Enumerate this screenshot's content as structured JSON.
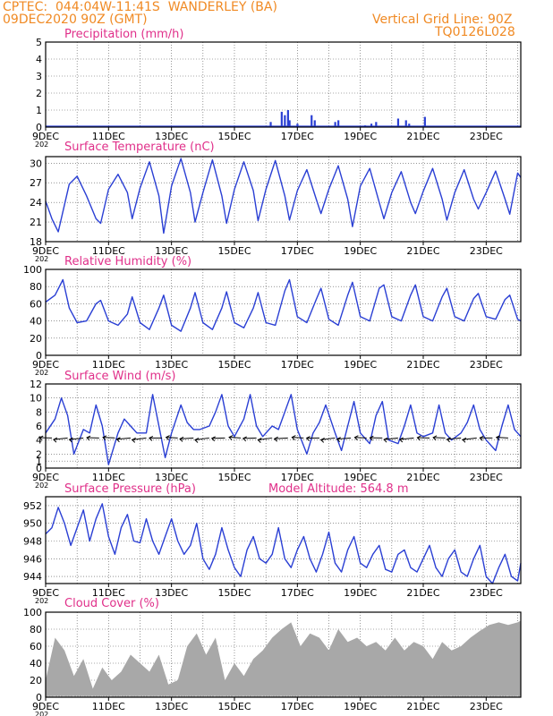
{
  "header": {
    "left_line1": "CPTEC:  044:04W-11:41S  WANDERLEY (BA)",
    "left_line2": "09DEC2020 90Z (GMT)",
    "right_line1": "Vertical Grid Line: 90Z",
    "right_line2": "TQ0126L028"
  },
  "colors": {
    "header": "#f08a24",
    "panel_title": "#e0308a",
    "series": "#2a3fd4",
    "bars": "#2a3fd4",
    "cloud_fill": "#a8a8a8",
    "grid": "#555555",
    "wind_arrows": "#000000"
  },
  "x_axis": {
    "tick_labels": [
      "9DEC",
      "11DEC",
      "13DEC",
      "15DEC",
      "17DEC",
      "19DEC",
      "21DEC",
      "23DEC"
    ],
    "year_fragment": "202"
  },
  "chart_data": [
    {
      "type": "bar",
      "title": "Precipitation (mm/h)",
      "x_unit": "day of December 2020",
      "xlim": [
        9,
        24.1
      ],
      "ylim": [
        0,
        5
      ],
      "yticks": [
        0,
        1,
        2,
        3,
        4,
        5
      ],
      "grid": true,
      "x": [
        16.15,
        16.5,
        16.6,
        16.7,
        16.75,
        17.0,
        17.45,
        17.55,
        18.2,
        18.3,
        19.15,
        19.35,
        19.5,
        20.2,
        20.45,
        20.55,
        21.05
      ],
      "values": [
        0.3,
        0.9,
        0.7,
        1.0,
        0.4,
        0.2,
        0.7,
        0.4,
        0.3,
        0.4,
        0.1,
        0.2,
        0.3,
        0.5,
        0.4,
        0.2,
        0.6
      ]
    },
    {
      "type": "line",
      "title": "Surface Temperature (nC)",
      "x_unit": "day of December 2020",
      "xlim": [
        9,
        24.1
      ],
      "ylim": [
        18,
        31
      ],
      "yticks": [
        18,
        21,
        24,
        27,
        30
      ],
      "grid": true,
      "series": [
        {
          "x": [
            9.0,
            9.2,
            9.4,
            9.75,
            10.0,
            10.3,
            10.6,
            10.75,
            11.0,
            11.3,
            11.6,
            11.75,
            12.0,
            12.3,
            12.6,
            12.75,
            13.0,
            13.3,
            13.6,
            13.75,
            14.0,
            14.3,
            14.6,
            14.75,
            15.0,
            15.3,
            15.6,
            15.75,
            16.0,
            16.3,
            16.6,
            16.75,
            17.0,
            17.3,
            17.6,
            17.75,
            18.0,
            18.3,
            18.6,
            18.75,
            19.0,
            19.3,
            19.6,
            19.75,
            20.0,
            20.3,
            20.6,
            20.75,
            21.0,
            21.3,
            21.6,
            21.75,
            22.0,
            22.3,
            22.6,
            22.75,
            23.0,
            23.3,
            23.6,
            23.75,
            24.0,
            24.1
          ],
          "values": [
            24.2,
            21.5,
            19.5,
            26.8,
            28.0,
            25.0,
            21.5,
            20.8,
            26.0,
            28.3,
            25.5,
            21.5,
            26.2,
            30.2,
            25.0,
            19.3,
            26.5,
            30.7,
            25.5,
            21.0,
            25.5,
            30.5,
            25.0,
            20.8,
            26.0,
            30.2,
            25.8,
            21.2,
            26.0,
            30.4,
            25.0,
            21.3,
            25.8,
            29.0,
            24.5,
            22.3,
            26.0,
            29.6,
            24.5,
            20.3,
            26.5,
            29.2,
            24.0,
            21.5,
            25.5,
            28.7,
            24.0,
            22.3,
            25.7,
            29.2,
            24.5,
            21.3,
            25.5,
            29.0,
            24.5,
            23.0,
            25.5,
            28.8,
            24.5,
            22.2,
            28.5,
            27.8
          ]
        }
      ]
    },
    {
      "type": "line",
      "title": "Relative Humidity (%)",
      "x_unit": "day of December 2020",
      "xlim": [
        9,
        24.1
      ],
      "ylim": [
        0,
        100
      ],
      "yticks": [
        0,
        20,
        40,
        60,
        80,
        100
      ],
      "grid": true,
      "series": [
        {
          "x": [
            9.0,
            9.3,
            9.55,
            9.75,
            10.0,
            10.3,
            10.6,
            10.75,
            11.0,
            11.3,
            11.6,
            11.75,
            12.0,
            12.3,
            12.6,
            12.75,
            13.0,
            13.3,
            13.6,
            13.75,
            14.0,
            14.3,
            14.6,
            14.75,
            15.0,
            15.3,
            15.6,
            15.75,
            16.0,
            16.3,
            16.6,
            16.75,
            17.0,
            17.3,
            17.6,
            17.75,
            18.0,
            18.3,
            18.6,
            18.75,
            19.0,
            19.3,
            19.6,
            19.75,
            20.0,
            20.3,
            20.6,
            20.75,
            21.0,
            21.3,
            21.6,
            21.75,
            22.0,
            22.3,
            22.6,
            22.75,
            23.0,
            23.3,
            23.6,
            23.75,
            24.0,
            24.1
          ],
          "values": [
            62,
            70,
            88,
            55,
            38,
            40,
            60,
            64,
            40,
            35,
            48,
            68,
            38,
            30,
            55,
            70,
            35,
            28,
            55,
            73,
            38,
            30,
            55,
            74,
            38,
            32,
            55,
            73,
            38,
            35,
            75,
            88,
            45,
            38,
            65,
            78,
            42,
            35,
            70,
            85,
            45,
            40,
            78,
            82,
            45,
            40,
            70,
            82,
            45,
            40,
            68,
            78,
            45,
            40,
            66,
            72,
            45,
            42,
            65,
            70,
            42,
            40
          ]
        }
      ]
    },
    {
      "type": "line",
      "title": "Surface Wind (m/s)",
      "x_unit": "day of December 2020",
      "xlim": [
        9,
        24.1
      ],
      "ylim": [
        0,
        12
      ],
      "yticks": [
        0,
        1,
        2,
        4,
        6,
        8,
        10,
        12
      ],
      "grid": true,
      "series": [
        {
          "x": [
            9.0,
            9.3,
            9.5,
            9.7,
            9.9,
            10.2,
            10.4,
            10.6,
            10.8,
            11.0,
            11.3,
            11.5,
            11.7,
            11.9,
            12.2,
            12.4,
            12.6,
            12.8,
            13.0,
            13.3,
            13.5,
            13.7,
            13.9,
            14.2,
            14.4,
            14.6,
            14.8,
            15.0,
            15.3,
            15.5,
            15.7,
            15.9,
            16.2,
            16.4,
            16.6,
            16.8,
            17.0,
            17.3,
            17.5,
            17.7,
            17.9,
            18.2,
            18.4,
            18.6,
            18.8,
            19.0,
            19.3,
            19.5,
            19.7,
            19.9,
            20.2,
            20.4,
            20.6,
            20.8,
            21.0,
            21.3,
            21.5,
            21.7,
            21.9,
            22.2,
            22.4,
            22.6,
            22.8,
            23.0,
            23.3,
            23.5,
            23.7,
            23.9,
            24.1
          ],
          "values": [
            5.0,
            7.0,
            10.0,
            7.5,
            2.0,
            5.5,
            5.0,
            9.0,
            6.0,
            0.5,
            5.0,
            7.0,
            6.0,
            5.0,
            5.0,
            10.5,
            6.0,
            1.5,
            5.0,
            9.0,
            6.5,
            5.5,
            5.5,
            6.0,
            8.0,
            10.5,
            6.0,
            4.5,
            7.0,
            10.5,
            6.0,
            4.5,
            6.0,
            5.5,
            8.0,
            10.5,
            5.5,
            2.0,
            5.0,
            6.5,
            9.0,
            5.0,
            2.5,
            6.0,
            9.5,
            5.0,
            3.5,
            7.5,
            9.5,
            4.0,
            3.5,
            6.0,
            9.0,
            5.0,
            4.5,
            5.0,
            9.0,
            5.0,
            4.0,
            5.0,
            6.5,
            9.0,
            5.5,
            4.0,
            2.5,
            6.0,
            9.0,
            5.5,
            4.5
          ]
        }
      ],
      "wind_arrows_direction": "westerly-pointing (from east/northeast)"
    },
    {
      "type": "line",
      "title": "Surface Pressure (hPa)",
      "annotation": "Model Altitude:  564.8  m",
      "x_unit": "day of December 2020",
      "xlim": [
        9,
        24.1
      ],
      "ylim": [
        943.2,
        953
      ],
      "yticks": [
        944,
        946,
        948,
        950,
        952
      ],
      "grid": true,
      "series": [
        {
          "x": [
            9.0,
            9.2,
            9.4,
            9.6,
            9.8,
            10.0,
            10.2,
            10.4,
            10.6,
            10.8,
            11.0,
            11.2,
            11.4,
            11.6,
            11.8,
            12.0,
            12.2,
            12.4,
            12.6,
            12.8,
            13.0,
            13.2,
            13.4,
            13.6,
            13.8,
            14.0,
            14.2,
            14.4,
            14.6,
            14.8,
            15.0,
            15.2,
            15.4,
            15.6,
            15.8,
            16.0,
            16.2,
            16.4,
            16.6,
            16.8,
            17.0,
            17.2,
            17.4,
            17.6,
            17.8,
            18.0,
            18.2,
            18.4,
            18.6,
            18.8,
            19.0,
            19.2,
            19.4,
            19.6,
            19.8,
            20.0,
            20.2,
            20.4,
            20.6,
            20.8,
            21.0,
            21.2,
            21.4,
            21.6,
            21.8,
            22.0,
            22.2,
            22.4,
            22.6,
            22.8,
            23.0,
            23.2,
            23.4,
            23.6,
            23.8,
            24.0,
            24.1
          ],
          "values": [
            948.8,
            949.5,
            951.8,
            950.0,
            947.5,
            949.5,
            951.5,
            948.0,
            950.5,
            952.2,
            948.5,
            946.5,
            949.5,
            951.0,
            948.0,
            947.8,
            950.5,
            948.0,
            946.5,
            948.5,
            950.5,
            948.0,
            946.5,
            947.5,
            950.0,
            946.0,
            944.8,
            946.5,
            949.5,
            947.0,
            945.0,
            944.0,
            947.0,
            948.5,
            946.0,
            945.5,
            946.5,
            949.5,
            946.0,
            945.0,
            947.0,
            948.5,
            946.0,
            944.5,
            946.5,
            949.0,
            945.5,
            944.5,
            947.0,
            948.5,
            945.5,
            945.0,
            946.5,
            947.5,
            944.8,
            944.5,
            946.5,
            947.0,
            945.0,
            944.5,
            946.0,
            947.5,
            945.0,
            944.0,
            946.0,
            947.0,
            944.5,
            944.0,
            946.0,
            947.5,
            944.0,
            943.2,
            945.0,
            946.5,
            944.0,
            943.5,
            945.5
          ]
        }
      ]
    },
    {
      "type": "area",
      "title": "Cloud Cover (%)",
      "x_unit": "day of December 2020",
      "xlim": [
        9,
        24.1
      ],
      "ylim": [
        0,
        100
      ],
      "yticks": [
        0,
        20,
        40,
        60,
        80,
        100
      ],
      "grid": true,
      "series": [
        {
          "x": [
            9.0,
            9.3,
            9.6,
            9.9,
            10.2,
            10.5,
            10.8,
            11.1,
            11.4,
            11.7,
            12.0,
            12.3,
            12.6,
            12.9,
            13.2,
            13.5,
            13.8,
            14.1,
            14.4,
            14.7,
            15.0,
            15.3,
            15.6,
            15.9,
            16.2,
            16.5,
            16.8,
            17.1,
            17.4,
            17.7,
            18.0,
            18.3,
            18.6,
            18.9,
            19.2,
            19.5,
            19.8,
            20.1,
            20.4,
            20.7,
            21.0,
            21.3,
            21.6,
            21.9,
            22.2,
            22.5,
            22.8,
            23.1,
            23.4,
            23.7,
            24.0,
            24.1
          ],
          "values": [
            20,
            70,
            55,
            25,
            45,
            10,
            35,
            20,
            30,
            50,
            40,
            30,
            50,
            15,
            20,
            60,
            75,
            50,
            70,
            20,
            40,
            25,
            45,
            55,
            70,
            80,
            88,
            60,
            75,
            70,
            55,
            80,
            65,
            70,
            60,
            65,
            55,
            70,
            55,
            65,
            60,
            45,
            65,
            55,
            60,
            70,
            78,
            85,
            88,
            85,
            88,
            90
          ]
        }
      ]
    }
  ]
}
